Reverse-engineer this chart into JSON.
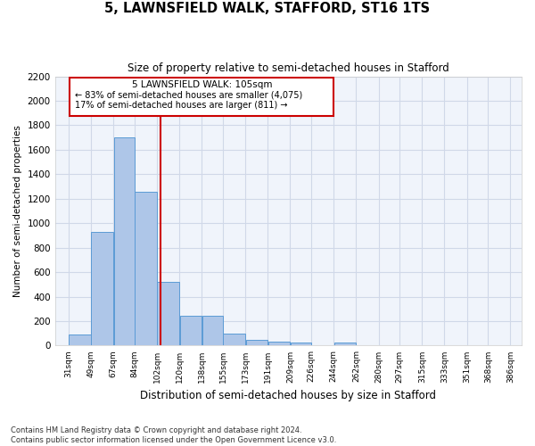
{
  "title": "5, LAWNSFIELD WALK, STAFFORD, ST16 1TS",
  "subtitle": "Size of property relative to semi-detached houses in Stafford",
  "xlabel": "Distribution of semi-detached houses by size in Stafford",
  "ylabel": "Number of semi-detached properties",
  "footer1": "Contains HM Land Registry data © Crown copyright and database right 2024.",
  "footer2": "Contains public sector information licensed under the Open Government Licence v3.0.",
  "annotation_title": "5 LAWNSFIELD WALK: 105sqm",
  "annotation_line1": "← 83% of semi-detached houses are smaller (4,075)",
  "annotation_line2": "17% of semi-detached houses are larger (811) →",
  "property_size": 105,
  "bar_left_edges": [
    31,
    49,
    67,
    84,
    102,
    120,
    138,
    155,
    173,
    191,
    209,
    226,
    244,
    262,
    280,
    297,
    315,
    333,
    351,
    368
  ],
  "bar_widths": [
    18,
    18,
    17,
    18,
    18,
    18,
    17,
    18,
    18,
    18,
    17,
    18,
    18,
    18,
    17,
    18,
    18,
    18,
    17,
    18
  ],
  "bar_heights": [
    90,
    930,
    1700,
    1260,
    520,
    240,
    240,
    100,
    45,
    30,
    25,
    0,
    25,
    0,
    0,
    0,
    0,
    0,
    0,
    0
  ],
  "bar_color": "#aec6e8",
  "bar_edge_color": "#5b9bd5",
  "vline_color": "#cc0000",
  "vline_x": 105,
  "box_color": "#cc0000",
  "ylim": [
    0,
    2200
  ],
  "yticks": [
    0,
    200,
    400,
    600,
    800,
    1000,
    1200,
    1400,
    1600,
    1800,
    2000,
    2200
  ],
  "xtick_labels": [
    "31sqm",
    "49sqm",
    "67sqm",
    "84sqm",
    "102sqm",
    "120sqm",
    "138sqm",
    "155sqm",
    "173sqm",
    "191sqm",
    "209sqm",
    "226sqm",
    "244sqm",
    "262sqm",
    "280sqm",
    "297sqm",
    "315sqm",
    "333sqm",
    "351sqm",
    "368sqm",
    "386sqm"
  ],
  "xtick_positions": [
    31,
    49,
    67,
    84,
    102,
    120,
    138,
    155,
    173,
    191,
    209,
    226,
    244,
    262,
    280,
    297,
    315,
    333,
    351,
    368,
    386
  ],
  "grid_color": "#d0d8e8",
  "background_color": "#f0f4fb"
}
